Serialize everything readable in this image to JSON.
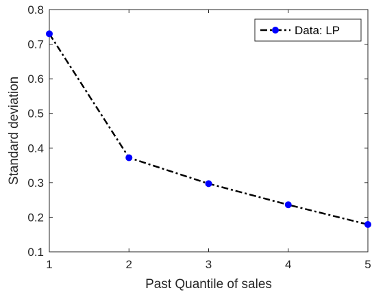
{
  "chart_data": {
    "type": "line",
    "title": "",
    "xlabel": "Past Quantile of sales",
    "ylabel": "Standard deviation",
    "xlim": [
      1,
      5
    ],
    "ylim": [
      0.1,
      0.8
    ],
    "x_ticks": [
      "1",
      "2",
      "3",
      "4",
      "5"
    ],
    "y_ticks": [
      "0.1",
      "0.2",
      "0.3",
      "0.4",
      "0.5",
      "0.6",
      "0.7",
      "0.8"
    ],
    "grid": false,
    "legend_position": "top-right",
    "series": [
      {
        "name": "Data: LP",
        "x": [
          1,
          2,
          3,
          4,
          5
        ],
        "y": [
          0.73,
          0.372,
          0.297,
          0.236,
          0.179
        ],
        "line_style": "dash-dot",
        "line_color": "#000000",
        "marker": "circle",
        "marker_color": "#0000ff"
      }
    ]
  }
}
